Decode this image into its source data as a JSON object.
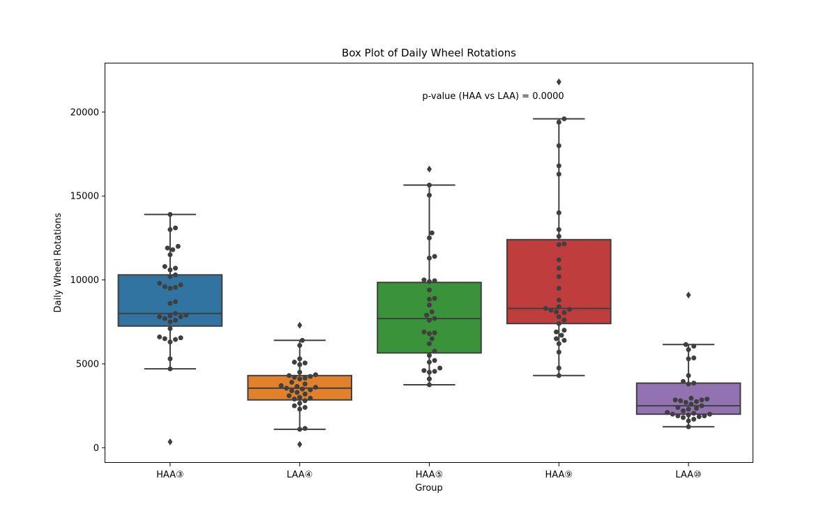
{
  "chart_data": {
    "type": "box",
    "title": "Box Plot of Daily Wheel Rotations",
    "xlabel": "Group",
    "ylabel": "Daily Wheel Rotations",
    "ylim": [
      -900,
      22900
    ],
    "yticks": [
      0,
      5000,
      10000,
      15000,
      20000
    ],
    "annotation": "p-value (HAA vs LAA) = 0.0000",
    "categories": [
      "HAA③",
      "LAA④",
      "HAA⑤",
      "HAA⑨",
      "LAA⑩"
    ],
    "colors": [
      "#3274a1",
      "#e1812c",
      "#3a923a",
      "#c03d3e",
      "#9372b2"
    ],
    "boxes": [
      {
        "q1": 7250,
        "median": 8000,
        "q3": 10300,
        "whisker_low": 4700,
        "whisker_high": 13900,
        "outliers": [
          350
        ],
        "points": [
          13900,
          13100,
          13000,
          12000,
          11900,
          11800,
          11500,
          10800,
          10700,
          10600,
          10300,
          10200,
          9800,
          9700,
          9600,
          9550,
          9500,
          8700,
          8600,
          8000,
          7900,
          7850,
          7800,
          7800,
          7700,
          7600,
          7500,
          7100,
          6600,
          6550,
          6500,
          6450,
          6300,
          5300,
          4700
        ]
      },
      {
        "q1": 2850,
        "median": 3550,
        "q3": 4300,
        "whisker_low": 1100,
        "whisker_high": 6400,
        "outliers": [
          7300,
          200
        ],
        "points": [
          6400,
          6100,
          5300,
          5100,
          5050,
          4950,
          4500,
          4350,
          4300,
          4250,
          4200,
          4150,
          4100,
          3900,
          3800,
          3700,
          3650,
          3600,
          3550,
          3500,
          3450,
          3400,
          3300,
          3200,
          3100,
          3000,
          2950,
          2900,
          2800,
          2650,
          2500,
          2400,
          2300,
          1150,
          1100
        ]
      },
      {
        "q1": 5650,
        "median": 7700,
        "q3": 9850,
        "whisker_low": 3750,
        "whisker_high": 15650,
        "outliers": [
          16600
        ],
        "points": [
          15650,
          15050,
          12800,
          12500,
          11400,
          11300,
          10000,
          9950,
          9900,
          9400,
          8900,
          8850,
          8500,
          8100,
          7900,
          7700,
          7600,
          6900,
          6850,
          6800,
          6500,
          6200,
          5750,
          5500,
          5200,
          5100,
          4750,
          4600,
          4550,
          4500,
          4100,
          3750
        ]
      },
      {
        "q1": 7400,
        "median": 8300,
        "q3": 12400,
        "whisker_low": 4300,
        "whisker_high": 19600,
        "outliers": [
          21800
        ],
        "points": [
          19600,
          19400,
          18000,
          16800,
          16300,
          14000,
          13000,
          12600,
          12150,
          12100,
          11200,
          10700,
          10200,
          9500,
          8800,
          8400,
          8300,
          8250,
          8200,
          8100,
          8050,
          7800,
          7600,
          7400,
          7000,
          6900,
          6700,
          6500,
          6400,
          6200,
          5700,
          4750,
          4300
        ]
      },
      {
        "q1": 2000,
        "median": 2500,
        "q3": 3850,
        "whisker_low": 1250,
        "whisker_high": 6150,
        "outliers": [
          9100
        ],
        "points": [
          6150,
          6050,
          5850,
          5350,
          5300,
          4300,
          3950,
          3850,
          3800,
          2950,
          2900,
          2850,
          2850,
          2800,
          2750,
          2700,
          2600,
          2500,
          2400,
          2350,
          2300,
          2200,
          2100,
          2050,
          2000,
          2000,
          1950,
          1900,
          1900,
          1850,
          1800,
          1700,
          1600,
          1250
        ]
      }
    ]
  }
}
